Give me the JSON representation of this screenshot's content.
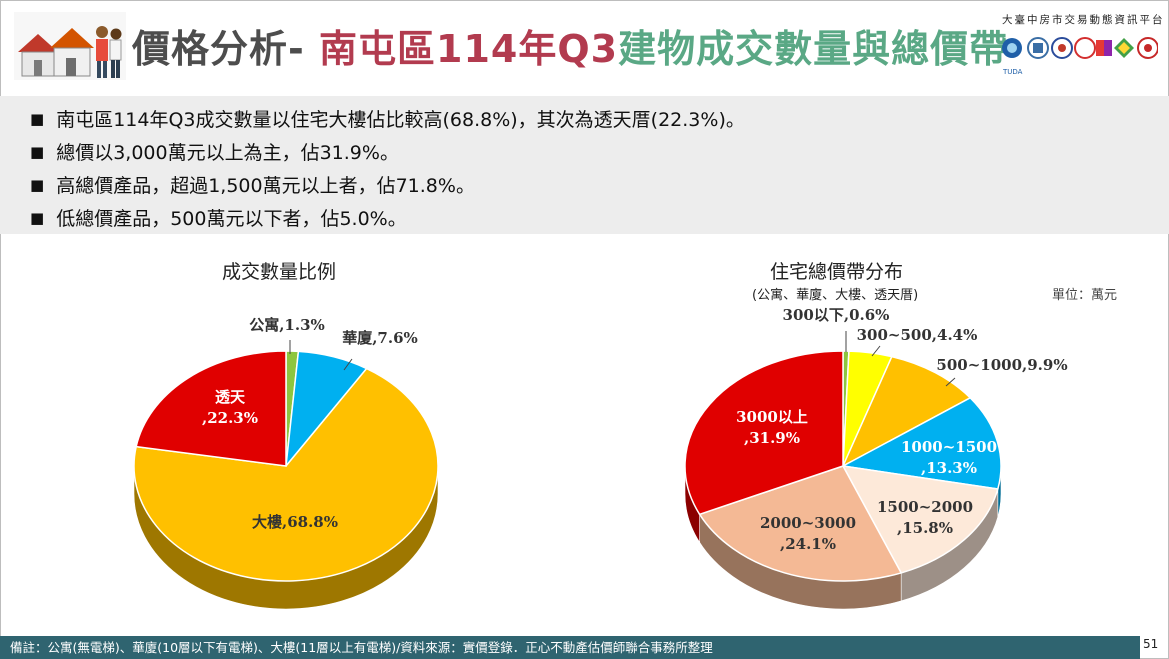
{
  "header": {
    "title_part1": "價格分析-",
    "title_part2": "南屯區114年Q3",
    "title_part3": "建物成交數量與總價帶",
    "org_name": "大臺中房市交易動態資訊平台"
  },
  "summary": [
    "南屯區114年Q3成交數量以住宅大樓佔比較高(68.8%)，其次為透天厝(22.3%)。",
    "總價以3,000萬元以上為主，佔31.9%。",
    "高總價產品，超過1,500萬元以上者，佔71.8%。",
    "低總價產品，500萬元以下者，佔5.0%。"
  ],
  "chart_data": [
    {
      "type": "pie",
      "title": "成交數量比例",
      "slices": [
        {
          "label": "公寓",
          "value": 1.3,
          "display": "公寓,1.3%",
          "color": "#8dc63f"
        },
        {
          "label": "華廈",
          "value": 7.6,
          "display": "華廈,7.6%",
          "color": "#00b0f0"
        },
        {
          "label": "大樓",
          "value": 68.8,
          "display": "大樓,68.8%",
          "color": "#ffc000"
        },
        {
          "label": "透天",
          "value": 22.3,
          "display_lines": [
            "透天",
            ",22.3%"
          ],
          "color": "#e00000"
        }
      ]
    },
    {
      "type": "pie",
      "title": "住宅總價帶分布",
      "subtitle": "(公寓、華廈、大樓、透天厝)",
      "unit": "單位：萬元",
      "slices": [
        {
          "label": "300以下",
          "value": 0.6,
          "display": "300以下,0.6%",
          "color": "#8dc63f"
        },
        {
          "label": "300~500",
          "value": 4.4,
          "display": "300~500,4.4%",
          "color": "#ffff00"
        },
        {
          "label": "500~1000",
          "value": 9.9,
          "display": "500~1000,9.9%",
          "color": "#ffc000"
        },
        {
          "label": "1000~1500",
          "value": 13.3,
          "display_lines": [
            "1000~1500",
            ",13.3%"
          ],
          "color": "#00b0f0"
        },
        {
          "label": "1500~2000",
          "value": 15.8,
          "display_lines": [
            "1500~2000",
            ",15.8%"
          ],
          "color": "#fde9d9"
        },
        {
          "label": "2000~3000",
          "value": 24.1,
          "display_lines": [
            "2000~3000",
            ",24.1%"
          ],
          "color": "#f4b995"
        },
        {
          "label": "3000以上",
          "value": 31.9,
          "display_lines": [
            "3000以上",
            ",31.9%"
          ],
          "color": "#e00000"
        }
      ]
    }
  ],
  "footer": {
    "note": "備註：公寓(無電梯)、華廈(10層以下有電梯)、大樓(11層以上有電梯)/資料來源：實價登錄．正心不動產估價師聯合事務所整理",
    "page": "51"
  }
}
